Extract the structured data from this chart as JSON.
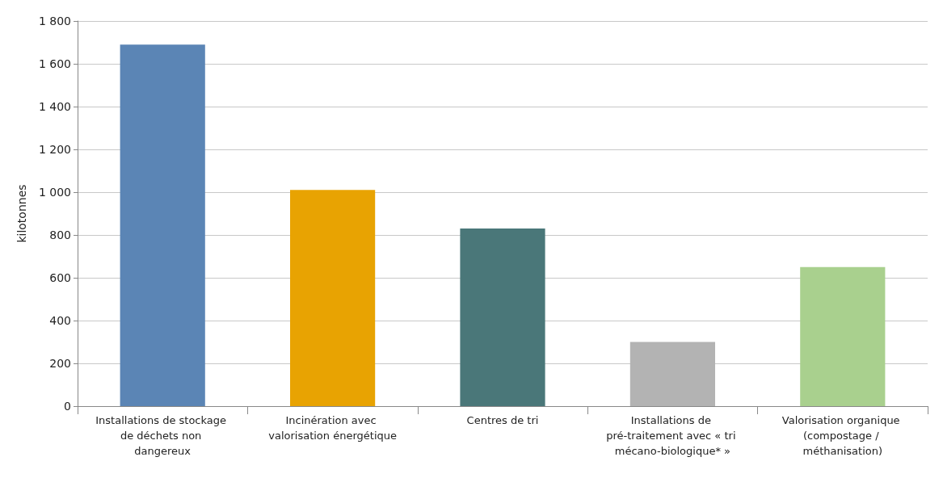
{
  "chart_data": {
    "type": "bar",
    "ylabel": "kilotonnes",
    "categories": [
      "Installations de stockage de déchets non dangereux",
      "Incinération avec valorisation énergétique",
      "Centres de tri",
      "Installations de pré-traitement avec « tri mécano-biologique* »",
      "Valorisation organique (compostage / méthanisation)"
    ],
    "values": [
      1690,
      1010,
      830,
      300,
      650
    ],
    "colors": [
      "#5b85b5",
      "#e8a302",
      "#4a7779",
      "#b3b3b3",
      "#a9d08e"
    ],
    "ylim": [
      0,
      1800
    ],
    "yticks": [
      0,
      200,
      400,
      600,
      800,
      {
        "value": 1000,
        "label": "1 000"
      },
      {
        "value": 1200,
        "label": "1 200"
      },
      {
        "value": 1400,
        "label": "1 400"
      },
      {
        "value": 1600,
        "label": "1 600"
      },
      {
        "value": 1800,
        "label": "1 800"
      }
    ],
    "grid": "y"
  }
}
